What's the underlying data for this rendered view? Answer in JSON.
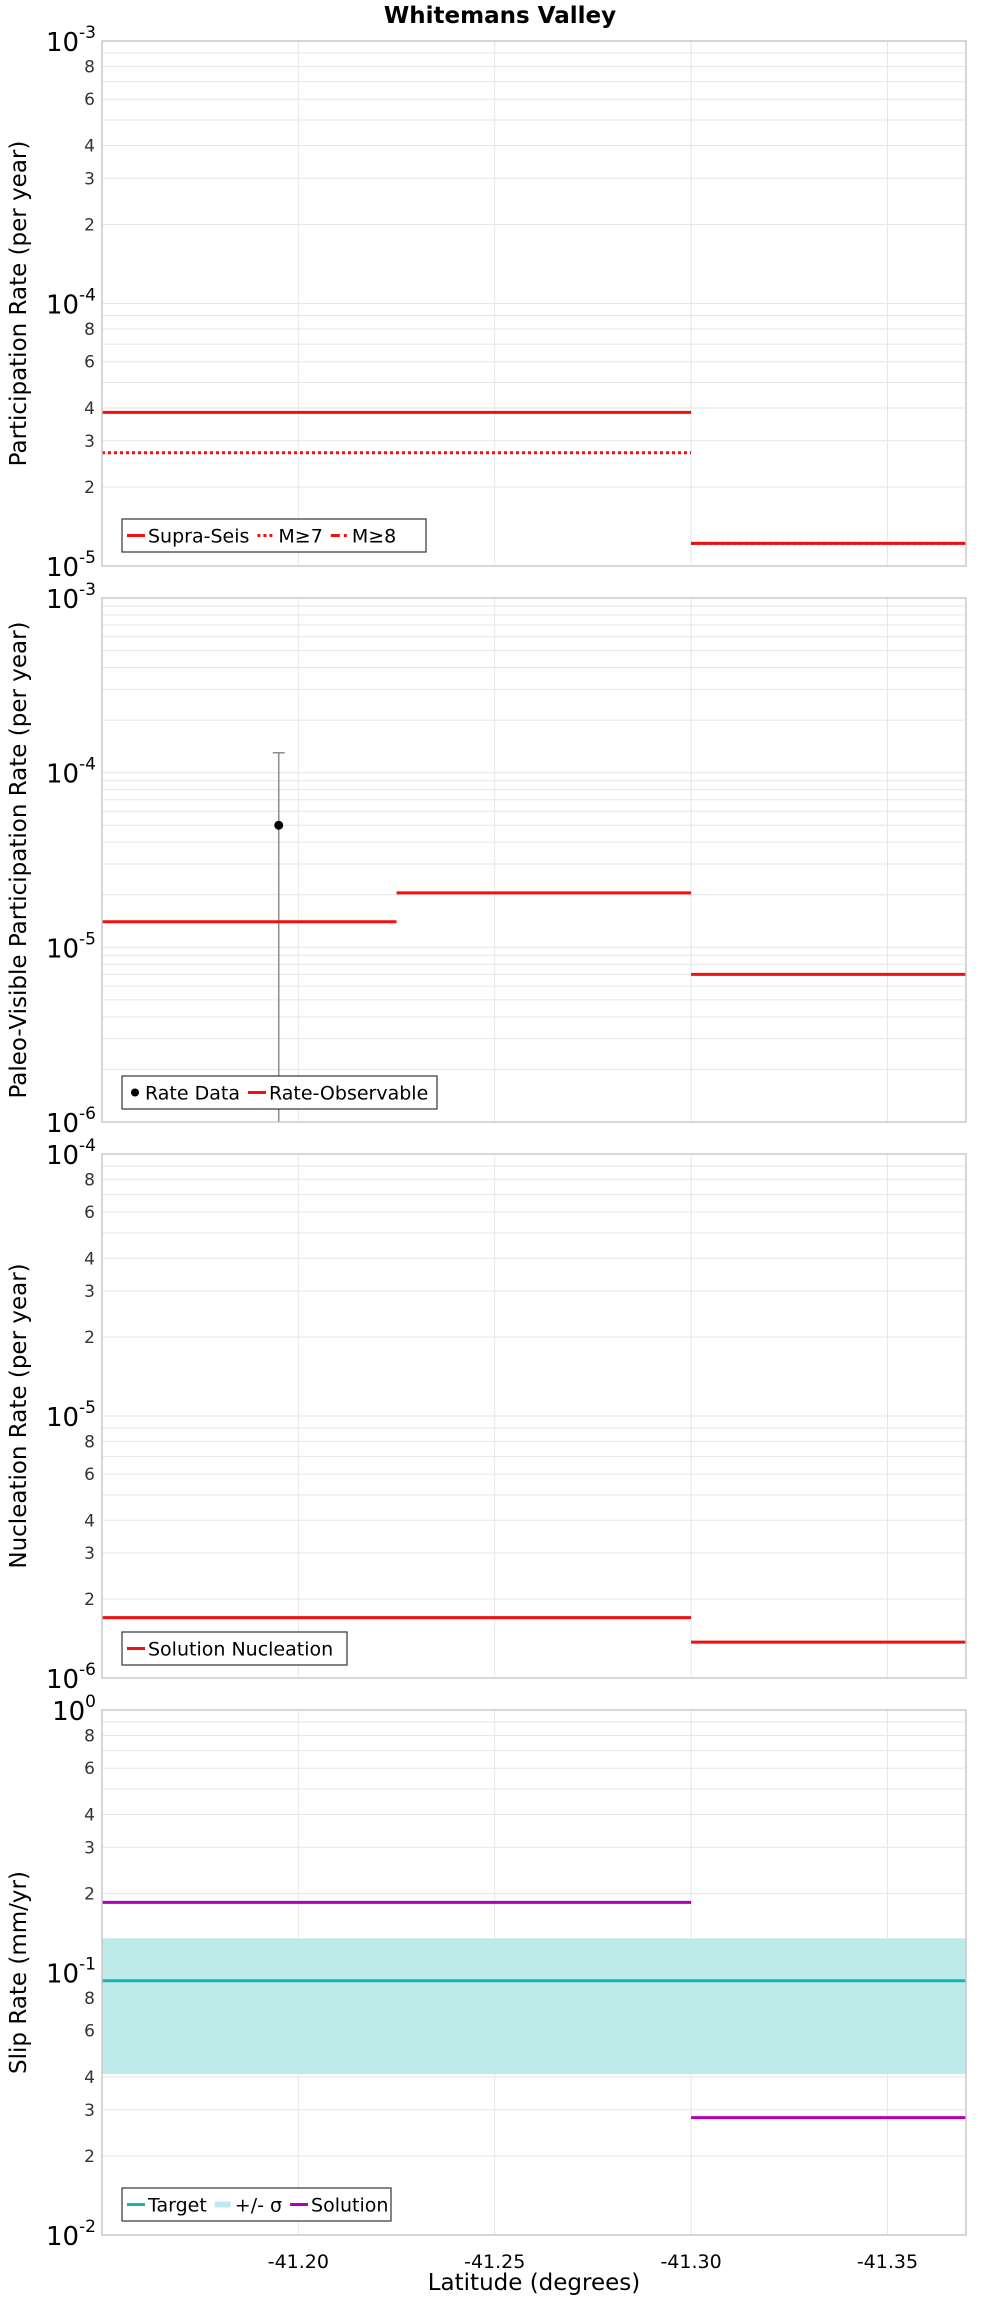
{
  "title": "Whitemans Valley",
  "colors": {
    "red": "#ee1111",
    "magenta": "#b000b8",
    "teal": "#14b4b4",
    "band": "#bfeaea",
    "grid": "#e6e6e6",
    "frame": "#c8c8c8",
    "errorbar": "#8c8c8c"
  },
  "xaxis": {
    "label": "Latitude (degrees)",
    "range": [
      -41.15,
      -41.37
    ],
    "ticks": [
      -41.2,
      -41.25,
      -41.3,
      -41.35
    ],
    "tick_labels": [
      "-41.20",
      "-41.25",
      "-41.30",
      "-41.35"
    ]
  },
  "chart_data": [
    {
      "type": "line",
      "ylabel": "Participation Rate (per year)",
      "yscale": "log",
      "ylim_exp": [
        -5,
        -3
      ],
      "series": [
        {
          "name": "Supra-Seis",
          "style": "solid",
          "color": "red",
          "segments": [
            [
              -41.15,
              -41.3,
              3.85e-05
            ],
            [
              -41.3,
              -41.37,
              1.22e-05
            ]
          ]
        },
        {
          "name": "M≥7",
          "style": "dotted",
          "color": "red",
          "segments": [
            [
              -41.15,
              -41.3,
              2.7e-05
            ],
            [
              -41.3,
              -41.37,
              1.22e-05
            ]
          ]
        },
        {
          "name": "M≥8",
          "style": "dashdot",
          "color": "red",
          "segments": []
        }
      ]
    },
    {
      "type": "line",
      "ylabel": "Paleo-Visible Participation Rate (per year)",
      "yscale": "log",
      "ylim_exp": [
        -6,
        -3
      ],
      "points": [
        {
          "x": -41.195,
          "y": 5e-05,
          "ylow": 1e-06,
          "yhigh": 0.00013
        }
      ],
      "series": [
        {
          "name": "Rate Data",
          "style": "point",
          "color": "black",
          "segments": []
        },
        {
          "name": "Rate-Observable",
          "style": "solid",
          "color": "red",
          "segments": [
            [
              -41.15,
              -41.225,
              1.4e-05
            ],
            [
              -41.225,
              -41.3,
              2.05e-05
            ],
            [
              -41.3,
              -41.37,
              7e-06
            ]
          ]
        }
      ]
    },
    {
      "type": "line",
      "ylabel": "Nucleation Rate (per year)",
      "yscale": "log",
      "ylim_exp": [
        -6,
        -4
      ],
      "series": [
        {
          "name": "Solution Nucleation",
          "style": "solid",
          "color": "red",
          "segments": [
            [
              -41.15,
              -41.3,
              1.7e-06
            ],
            [
              -41.3,
              -41.37,
              1.37e-06
            ]
          ]
        }
      ]
    },
    {
      "type": "line",
      "ylabel": "Slip Rate (mm/yr)",
      "yscale": "log",
      "ylim_exp": [
        -2,
        0
      ],
      "band": {
        "low": 0.041,
        "high": 0.135
      },
      "series": [
        {
          "name": "Target",
          "style": "solid",
          "color": "teal",
          "segments": [
            [
              -41.15,
              -41.37,
              0.093
            ]
          ]
        },
        {
          "name": "+/- σ",
          "style": "band",
          "color": "band",
          "segments": []
        },
        {
          "name": "Solution",
          "style": "solid",
          "color": "magenta",
          "segments": [
            [
              -41.15,
              -41.3,
              0.185
            ],
            [
              -41.3,
              -41.37,
              0.028
            ]
          ]
        }
      ]
    }
  ]
}
